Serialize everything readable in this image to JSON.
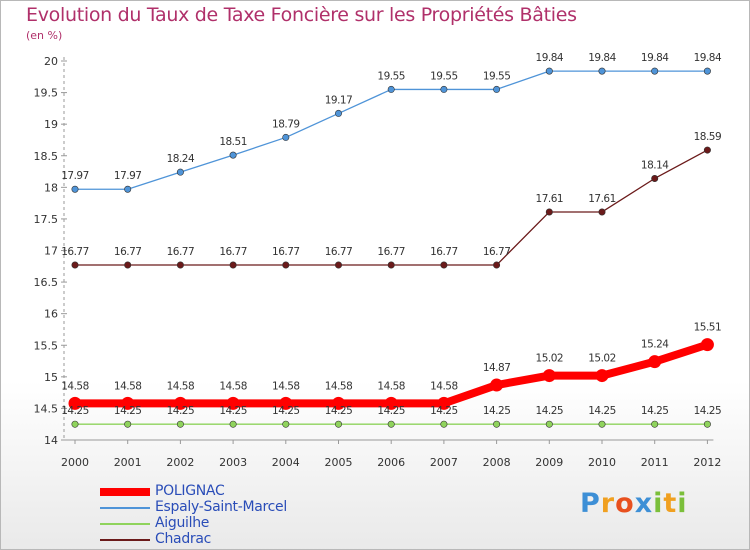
{
  "chart_data": {
    "type": "line",
    "title": "Evolution du Taux de Taxe Foncière sur les Propriétés Bâties",
    "ylabel": "(en %)",
    "xlabel": "",
    "categories": [
      "2000",
      "2001",
      "2002",
      "2003",
      "2004",
      "2005",
      "2006",
      "2007",
      "2008",
      "2009",
      "2010",
      "2011",
      "2012"
    ],
    "ylim": [
      14,
      20
    ],
    "yticks": [
      "14",
      "14.5",
      "15",
      "15.5",
      "16",
      "16.5",
      "17",
      "17.5",
      "18",
      "18.5",
      "19",
      "19.5",
      "20"
    ],
    "grid": false,
    "legend_position": "bottom-left",
    "series": [
      {
        "name": "POLIGNAC",
        "color": "#ff0000",
        "values": [
          14.58,
          14.58,
          14.58,
          14.58,
          14.58,
          14.58,
          14.58,
          14.58,
          14.87,
          15.02,
          15.02,
          15.24,
          15.51
        ],
        "labels": [
          "14.58",
          "14.58",
          "14.58",
          "14.58",
          "14.58",
          "14.58",
          "14.58",
          "14.58",
          "14.87",
          "15.02",
          "15.02",
          "15.24",
          "15.51"
        ]
      },
      {
        "name": "Espaly-Saint-Marcel",
        "color": "#4f94d8",
        "values": [
          17.97,
          17.97,
          18.24,
          18.51,
          18.79,
          19.17,
          19.55,
          19.55,
          19.55,
          19.84,
          19.84,
          19.84,
          19.84
        ],
        "labels": [
          "17.97",
          "17.97",
          "18.24",
          "18.51",
          "18.79",
          "19.17",
          "19.55",
          "19.55",
          "19.55",
          "19.84",
          "19.84",
          "19.84",
          "19.84"
        ]
      },
      {
        "name": "Aiguilhe",
        "color": "#8fd35c",
        "values": [
          14.25,
          14.25,
          14.25,
          14.25,
          14.25,
          14.25,
          14.25,
          14.25,
          14.25,
          14.25,
          14.25,
          14.25,
          14.25
        ],
        "labels": [
          "14.25",
          "14.25",
          "14.25",
          "14.25",
          "14.25",
          "14.25",
          "14.25",
          "14.25",
          "14.25",
          "14.25",
          "14.25",
          "14.25",
          "14.25"
        ]
      },
      {
        "name": "Chadrac",
        "color": "#6b1a1a",
        "values": [
          16.77,
          16.77,
          16.77,
          16.77,
          16.77,
          16.77,
          16.77,
          16.77,
          16.77,
          17.61,
          17.61,
          18.14,
          18.59
        ],
        "labels": [
          "16.77",
          "16.77",
          "16.77",
          "16.77",
          "16.77",
          "16.77",
          "16.77",
          "16.77",
          "16.77",
          "17.61",
          "17.61",
          "18.14",
          "18.59"
        ]
      }
    ]
  },
  "logo": {
    "text": "Proxiti",
    "letters": [
      "P",
      "r",
      "o",
      "x",
      "i",
      "t",
      "i"
    ],
    "colors": [
      "#3d8fd6",
      "#f0a020",
      "#e8501e",
      "#3d8fd6",
      "#7bbf3a",
      "#f0a020",
      "#7bbf3a"
    ]
  }
}
